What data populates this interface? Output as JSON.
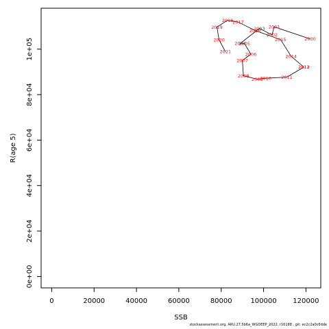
{
  "chart_data": {
    "type": "line",
    "xlabel": "SSB",
    "ylabel": "R(age 5)",
    "xlim": [
      -5000,
      127000
    ],
    "ylim": [
      -5000,
      118000
    ],
    "xticks": [
      0,
      20000,
      40000,
      60000,
      80000,
      100000,
      120000
    ],
    "yticks": [
      0,
      20000,
      40000,
      60000,
      80000,
      100000
    ],
    "xtick_labels": [
      "0",
      "20000",
      "40000",
      "60000",
      "80000",
      "100000",
      "120000"
    ],
    "ytick_labels": [
      "0e+00",
      "2e+04",
      "4e+04",
      "6e+04",
      "8e+04",
      "1e+05"
    ],
    "color_line": "#000000",
    "color_label": "#ff0000",
    "points": [
      {
        "year": "2000",
        "x": 122000,
        "y": 104500
      },
      {
        "year": "2001",
        "x": 105000,
        "y": 109800
      },
      {
        "year": "2002",
        "x": 104000,
        "y": 106300
      },
      {
        "year": "2003",
        "x": 98000,
        "y": 109100
      },
      {
        "year": "2004",
        "x": 89000,
        "y": 102500
      },
      {
        "year": "2005",
        "x": 91000,
        "y": 102400
      },
      {
        "year": "2006",
        "x": 94000,
        "y": 97800
      },
      {
        "year": "2007",
        "x": 90000,
        "y": 95000
      },
      {
        "year": "2008",
        "x": 90500,
        "y": 88300
      },
      {
        "year": "2009",
        "x": 97000,
        "y": 86800
      },
      {
        "year": "2010",
        "x": 101000,
        "y": 87200
      },
      {
        "year": "2011",
        "x": 111000,
        "y": 87700
      },
      {
        "year": "2012",
        "x": 119000,
        "y": 92100
      },
      {
        "year": "2013",
        "x": 119000,
        "y": 92100
      },
      {
        "year": "2014",
        "x": 113000,
        "y": 96900
      },
      {
        "year": "2015",
        "x": 108000,
        "y": 104200
      },
      {
        "year": "2016",
        "x": 96000,
        "y": 108200
      },
      {
        "year": "2017",
        "x": 88000,
        "y": 111900
      },
      {
        "year": "2018",
        "x": 83000,
        "y": 112700
      },
      {
        "year": "2019",
        "x": 78000,
        "y": 109700
      },
      {
        "year": "2020",
        "x": 79000,
        "y": 104100
      },
      {
        "year": "2021",
        "x": 82000,
        "y": 98900
      }
    ]
  },
  "footer": "stockassessment.org, ARU.27.5b6a_WGDEEP_2022, r16188 , git: ec2c2a0c6dde"
}
